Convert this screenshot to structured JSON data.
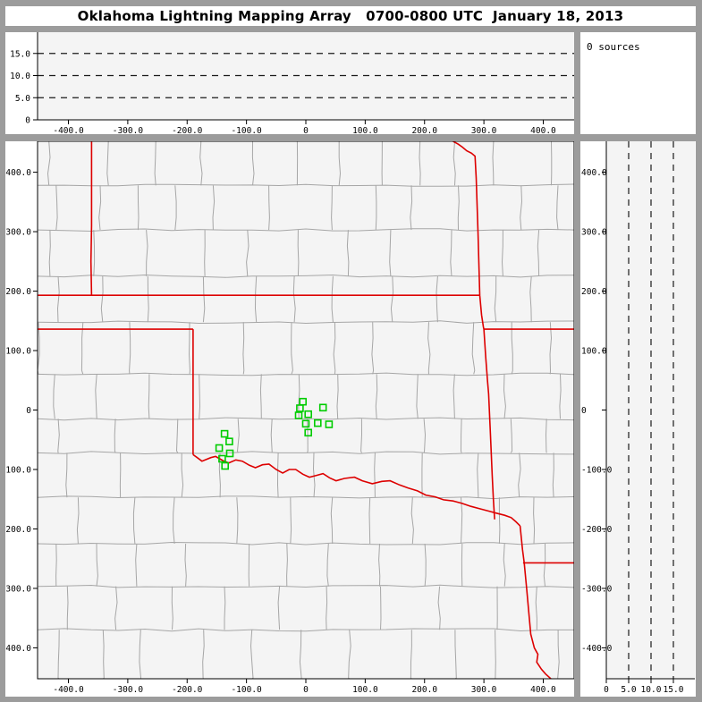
{
  "title": "Oklahoma Lightning Mapping Array   0700-0800 UTC  January 18, 2013",
  "sources_panel": {
    "text": "0 sources"
  },
  "colors": {
    "frame": "#9c9c9c",
    "plot_bg": "#f4f4f4",
    "county_line": "#a6a6a6",
    "state_line": "#dd0000",
    "station": "#00cc00",
    "axis": "#000000",
    "grid_dash": "#1a1a1a",
    "margin_bg": "#ffffff"
  },
  "axes": {
    "ew_km": {
      "min": -452,
      "max": 452,
      "tick_values": [
        -400,
        -300,
        -200,
        -100,
        0,
        100,
        200,
        300,
        400
      ],
      "tick_labels": [
        "-400.0",
        "-300.0",
        "-200.0",
        "-100.0",
        "0",
        "100.0",
        "200.0",
        "300.0",
        "400.0"
      ]
    },
    "ns_km": {
      "min": -452,
      "max": 452,
      "tick_values": [
        400,
        300,
        200,
        100,
        0,
        -100,
        -200,
        -300,
        -400
      ],
      "tick_labels": [
        "400.0",
        "300.0",
        "200.0",
        "100.0",
        "0",
        "-100.0",
        "-200.0",
        "-300.0",
        "-400.0"
      ]
    },
    "alt_km": {
      "min": 0,
      "max": 19.8,
      "tick_values": [
        0,
        5,
        10,
        15
      ],
      "tick_labels": [
        "0",
        "5.0",
        "10.0",
        "15.0"
      ],
      "gridlines": [
        5,
        10,
        15
      ]
    }
  },
  "chart_data": {
    "type": "scatter",
    "title": "Oklahoma Lightning Mapping Array",
    "time_range_utc": "0700-0800 UTC",
    "date": "January 18, 2013",
    "source_count": 0,
    "panels": [
      {
        "name": "altitude-vs-eastwest",
        "x_range_km": [
          -452,
          452
        ],
        "y_range_km": [
          0,
          19.8
        ],
        "gridlines_km": [
          5,
          10,
          15
        ],
        "points": []
      },
      {
        "name": "plan-view-map",
        "x_range_km": [
          -452,
          452
        ],
        "y_range_km": [
          -452,
          452
        ],
        "points": []
      },
      {
        "name": "altitude-vs-northsouth",
        "x_range_km": [
          0,
          19.8
        ],
        "y_range_km": [
          -452,
          452
        ],
        "gridlines_km": [
          5,
          10,
          15
        ],
        "points": []
      }
    ],
    "lma_stations_km": [
      [
        -5,
        14
      ],
      [
        -10,
        3
      ],
      [
        29,
        4
      ],
      [
        -12,
        -9
      ],
      [
        4,
        -7
      ],
      [
        0,
        -23
      ],
      [
        20,
        -22
      ],
      [
        39,
        -24
      ],
      [
        4,
        -38
      ],
      [
        -137,
        -40
      ],
      [
        -129,
        -53
      ],
      [
        -146,
        -64
      ],
      [
        -128,
        -73
      ],
      [
        -141,
        -82
      ],
      [
        -136,
        -94
      ]
    ]
  },
  "map": {
    "county_seed": 11,
    "state_borders": [
      [
        [
          -361,
          452
        ],
        [
          -361,
          310
        ],
        [
          -362,
          250
        ],
        [
          -361,
          193
        ]
      ],
      [
        [
          -452,
          193
        ],
        [
          293,
          193
        ]
      ],
      [
        [
          -452,
          136
        ],
        [
          -190,
          136
        ]
      ],
      [
        [
          300,
          136
        ],
        [
          452,
          136
        ]
      ],
      [
        [
          -190,
          136
        ],
        [
          -190,
          -75
        ]
      ],
      [
        [
          248,
          452
        ],
        [
          257,
          447
        ],
        [
          264,
          442
        ],
        [
          271,
          436
        ],
        [
          279,
          432
        ],
        [
          285,
          427
        ],
        [
          287,
          390
        ],
        [
          290,
          300
        ],
        [
          292,
          230
        ],
        [
          293,
          193
        ],
        [
          296,
          160
        ],
        [
          299,
          140
        ],
        [
          300,
          136
        ],
        [
          303,
          90
        ],
        [
          306,
          50
        ],
        [
          308,
          27
        ],
        [
          311,
          -40
        ],
        [
          314,
          -110
        ],
        [
          316,
          -150
        ],
        [
          318,
          -184
        ]
      ],
      [
        [
          -190,
          -75
        ],
        [
          -183,
          -80
        ],
        [
          -175,
          -86
        ],
        [
          -160,
          -80
        ],
        [
          -152,
          -78
        ],
        [
          -140,
          -85
        ],
        [
          -130,
          -89
        ],
        [
          -118,
          -84
        ],
        [
          -107,
          -86
        ],
        [
          -95,
          -93
        ],
        [
          -85,
          -97
        ],
        [
          -73,
          -92
        ],
        [
          -62,
          -91
        ],
        [
          -50,
          -100
        ],
        [
          -39,
          -106
        ],
        [
          -28,
          -100
        ],
        [
          -17,
          -100
        ],
        [
          -5,
          -108
        ],
        [
          6,
          -113
        ],
        [
          18,
          -110
        ],
        [
          29,
          -107
        ],
        [
          40,
          -114
        ],
        [
          51,
          -119
        ],
        [
          65,
          -115
        ],
        [
          82,
          -113
        ],
        [
          95,
          -119
        ],
        [
          112,
          -124
        ],
        [
          128,
          -120
        ],
        [
          142,
          -119
        ],
        [
          158,
          -126
        ],
        [
          172,
          -131
        ],
        [
          188,
          -136
        ],
        [
          202,
          -143
        ],
        [
          218,
          -146
        ],
        [
          232,
          -151
        ],
        [
          248,
          -153
        ],
        [
          263,
          -157
        ],
        [
          278,
          -162
        ],
        [
          293,
          -166
        ],
        [
          308,
          -170
        ],
        [
          323,
          -174
        ],
        [
          335,
          -177
        ],
        [
          346,
          -181
        ],
        [
          354,
          -188
        ],
        [
          361,
          -195
        ]
      ],
      [
        [
          361,
          -195
        ],
        [
          365,
          -235
        ],
        [
          368,
          -257
        ],
        [
          372,
          -300
        ],
        [
          376,
          -345
        ],
        [
          379,
          -377
        ],
        [
          385,
          -400
        ],
        [
          391,
          -411
        ],
        [
          389,
          -424
        ],
        [
          397,
          -436
        ],
        [
          404,
          -444
        ],
        [
          414,
          -453
        ]
      ],
      [
        [
          366,
          -257
        ],
        [
          452,
          -257
        ]
      ]
    ],
    "stations": [
      [
        -5,
        14
      ],
      [
        -10,
        3
      ],
      [
        29,
        4
      ],
      [
        -12,
        -9
      ],
      [
        4,
        -7
      ],
      [
        0,
        -23
      ],
      [
        20,
        -22
      ],
      [
        39,
        -24
      ],
      [
        4,
        -38
      ],
      [
        -137,
        -40
      ],
      [
        -129,
        -53
      ],
      [
        -146,
        -64
      ],
      [
        -128,
        -73
      ],
      [
        -141,
        -82
      ],
      [
        -136,
        -94
      ]
    ]
  }
}
